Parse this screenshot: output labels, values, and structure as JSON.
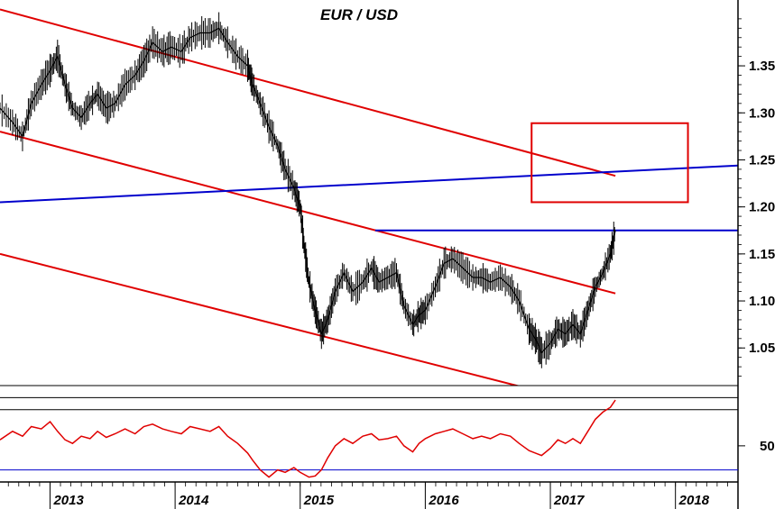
{
  "chart_data": {
    "type": "candlestick",
    "title": "EUR / USD",
    "price_axis": {
      "ylim": [
        1.01,
        1.42
      ],
      "ticks": [
        1.05,
        1.1,
        1.15,
        1.2,
        1.25,
        1.3,
        1.35
      ],
      "tick_labels": [
        "1.05",
        "1.10",
        "1.15",
        "1.20",
        "1.25",
        "1.30",
        "1.35"
      ]
    },
    "time_axis": {
      "xlim": [
        2012.6,
        2018.5
      ],
      "tick_labels": [
        "2013",
        "2014",
        "2015",
        "2016",
        "2017",
        "2018"
      ],
      "ticks": [
        2013.0,
        2014.0,
        2015.0,
        2016.0,
        2017.0,
        2018.0
      ]
    },
    "price_series": {
      "color": "#000000",
      "points": [
        [
          2012.6,
          1.305
        ],
        [
          2012.7,
          1.29
        ],
        [
          2012.78,
          1.275
        ],
        [
          2012.85,
          1.31
        ],
        [
          2012.93,
          1.33
        ],
        [
          2013.0,
          1.345
        ],
        [
          2013.06,
          1.36
        ],
        [
          2013.12,
          1.33
        ],
        [
          2013.18,
          1.305
        ],
        [
          2013.25,
          1.295
        ],
        [
          2013.32,
          1.31
        ],
        [
          2013.38,
          1.32
        ],
        [
          2013.45,
          1.305
        ],
        [
          2013.52,
          1.31
        ],
        [
          2013.6,
          1.33
        ],
        [
          2013.68,
          1.34
        ],
        [
          2013.75,
          1.355
        ],
        [
          2013.82,
          1.375
        ],
        [
          2013.9,
          1.365
        ],
        [
          2013.97,
          1.37
        ],
        [
          2014.05,
          1.365
        ],
        [
          2014.12,
          1.38
        ],
        [
          2014.2,
          1.385
        ],
        [
          2014.28,
          1.385
        ],
        [
          2014.35,
          1.39
        ],
        [
          2014.42,
          1.375
        ],
        [
          2014.5,
          1.36
        ],
        [
          2014.58,
          1.35
        ],
        [
          2014.62,
          1.33
        ],
        [
          2014.68,
          1.31
        ],
        [
          2014.75,
          1.285
        ],
        [
          2014.82,
          1.265
        ],
        [
          2014.88,
          1.24
        ],
        [
          2014.95,
          1.22
        ],
        [
          2015.0,
          1.2
        ],
        [
          2015.03,
          1.16
        ],
        [
          2015.07,
          1.12
        ],
        [
          2015.12,
          1.09
        ],
        [
          2015.17,
          1.065
        ],
        [
          2015.22,
          1.08
        ],
        [
          2015.28,
          1.11
        ],
        [
          2015.35,
          1.13
        ],
        [
          2015.42,
          1.11
        ],
        [
          2015.5,
          1.12
        ],
        [
          2015.57,
          1.135
        ],
        [
          2015.63,
          1.12
        ],
        [
          2015.7,
          1.125
        ],
        [
          2015.77,
          1.13
        ],
        [
          2015.83,
          1.095
        ],
        [
          2015.9,
          1.075
        ],
        [
          2015.95,
          1.085
        ],
        [
          2016.0,
          1.09
        ],
        [
          2016.08,
          1.115
        ],
        [
          2016.15,
          1.14
        ],
        [
          2016.22,
          1.145
        ],
        [
          2016.3,
          1.135
        ],
        [
          2016.38,
          1.125
        ],
        [
          2016.45,
          1.125
        ],
        [
          2016.52,
          1.12
        ],
        [
          2016.6,
          1.125
        ],
        [
          2016.68,
          1.115
        ],
        [
          2016.75,
          1.1
        ],
        [
          2016.83,
          1.07
        ],
        [
          2016.88,
          1.06
        ],
        [
          2016.93,
          1.045
        ],
        [
          2017.0,
          1.055
        ],
        [
          2017.06,
          1.07
        ],
        [
          2017.12,
          1.065
        ],
        [
          2017.18,
          1.075
        ],
        [
          2017.24,
          1.065
        ],
        [
          2017.3,
          1.09
        ],
        [
          2017.36,
          1.115
        ],
        [
          2017.42,
          1.13
        ],
        [
          2017.48,
          1.15
        ],
        [
          2017.52,
          1.175
        ]
      ]
    },
    "trendlines": [
      {
        "color": "#e00000",
        "from": [
          2012.6,
          1.41
        ],
        "to": [
          2017.52,
          1.233
        ]
      },
      {
        "color": "#e00000",
        "from": [
          2012.6,
          1.28
        ],
        "to": [
          2017.52,
          1.108
        ]
      },
      {
        "color": "#e00000",
        "from": [
          2012.6,
          1.15
        ],
        "to": [
          2017.32,
          0.99
        ]
      },
      {
        "color": "#0000cc",
        "from": [
          2012.6,
          1.205
        ],
        "to": [
          2018.5,
          1.244
        ]
      },
      {
        "color": "#0000cc",
        "from": [
          2015.6,
          1.175
        ],
        "to": [
          2018.5,
          1.175
        ]
      }
    ],
    "highlight_box": {
      "color": "#e00000",
      "x": [
        2016.85,
        2018.1
      ],
      "y": [
        1.205,
        1.289
      ]
    },
    "indicator": {
      "ylim": [
        20,
        100
      ],
      "tick_labels": [
        "50"
      ],
      "ticks": [
        50
      ],
      "levels": [
        90,
        80,
        30
      ],
      "level_colors": [
        "#000000",
        "#000000",
        "#0000cc"
      ],
      "color": "#e00000",
      "values": [
        [
          2012.6,
          55
        ],
        [
          2012.7,
          62
        ],
        [
          2012.78,
          58
        ],
        [
          2012.85,
          66
        ],
        [
          2012.93,
          64
        ],
        [
          2013.0,
          70
        ],
        [
          2013.06,
          62
        ],
        [
          2013.12,
          55
        ],
        [
          2013.18,
          52
        ],
        [
          2013.25,
          58
        ],
        [
          2013.32,
          56
        ],
        [
          2013.38,
          62
        ],
        [
          2013.45,
          57
        ],
        [
          2013.52,
          60
        ],
        [
          2013.6,
          64
        ],
        [
          2013.68,
          60
        ],
        [
          2013.75,
          66
        ],
        [
          2013.82,
          68
        ],
        [
          2013.9,
          64
        ],
        [
          2013.97,
          62
        ],
        [
          2014.05,
          60
        ],
        [
          2014.12,
          66
        ],
        [
          2014.2,
          64
        ],
        [
          2014.28,
          62
        ],
        [
          2014.35,
          66
        ],
        [
          2014.42,
          58
        ],
        [
          2014.5,
          52
        ],
        [
          2014.58,
          44
        ],
        [
          2014.62,
          38
        ],
        [
          2014.68,
          30
        ],
        [
          2014.75,
          24
        ],
        [
          2014.82,
          30
        ],
        [
          2014.88,
          28
        ],
        [
          2014.95,
          32
        ],
        [
          2015.0,
          28
        ],
        [
          2015.07,
          24
        ],
        [
          2015.12,
          25
        ],
        [
          2015.17,
          30
        ],
        [
          2015.22,
          40
        ],
        [
          2015.28,
          50
        ],
        [
          2015.35,
          56
        ],
        [
          2015.42,
          52
        ],
        [
          2015.5,
          58
        ],
        [
          2015.57,
          60
        ],
        [
          2015.63,
          55
        ],
        [
          2015.7,
          56
        ],
        [
          2015.77,
          58
        ],
        [
          2015.83,
          50
        ],
        [
          2015.9,
          45
        ],
        [
          2015.95,
          52
        ],
        [
          2016.0,
          56
        ],
        [
          2016.08,
          60
        ],
        [
          2016.15,
          62
        ],
        [
          2016.22,
          64
        ],
        [
          2016.3,
          60
        ],
        [
          2016.38,
          56
        ],
        [
          2016.45,
          58
        ],
        [
          2016.52,
          56
        ],
        [
          2016.6,
          60
        ],
        [
          2016.68,
          58
        ],
        [
          2016.75,
          52
        ],
        [
          2016.83,
          46
        ],
        [
          2016.88,
          44
        ],
        [
          2016.93,
          42
        ],
        [
          2017.0,
          48
        ],
        [
          2017.06,
          55
        ],
        [
          2017.12,
          52
        ],
        [
          2017.18,
          56
        ],
        [
          2017.24,
          52
        ],
        [
          2017.3,
          62
        ],
        [
          2017.36,
          72
        ],
        [
          2017.42,
          78
        ],
        [
          2017.48,
          82
        ],
        [
          2017.52,
          88
        ]
      ]
    }
  }
}
